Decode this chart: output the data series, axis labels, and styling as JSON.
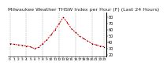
{
  "title": "Milwaukee Weather THSW Index per Hour (F) (Last 24 Hours)",
  "hours": [
    0,
    1,
    2,
    3,
    4,
    5,
    6,
    7,
    8,
    9,
    10,
    11,
    12,
    13,
    14,
    15,
    16,
    17,
    18,
    19,
    20,
    21,
    22,
    23
  ],
  "values": [
    38,
    37,
    36,
    35,
    34,
    33,
    30,
    32,
    38,
    44,
    52,
    60,
    70,
    80,
    72,
    62,
    56,
    50,
    46,
    42,
    38,
    36,
    34,
    33
  ],
  "line_color": "#ff0000",
  "marker_color": "#000000",
  "bg_color": "#ffffff",
  "grid_color": "#888888",
  "ylim": [
    18,
    88
  ],
  "ytick_values": [
    20,
    30,
    40,
    50,
    60,
    70,
    80
  ],
  "title_fontsize": 4.5,
  "tick_fontsize": 3.5,
  "grid_positions": [
    0,
    4,
    8,
    12,
    16,
    20,
    23
  ]
}
